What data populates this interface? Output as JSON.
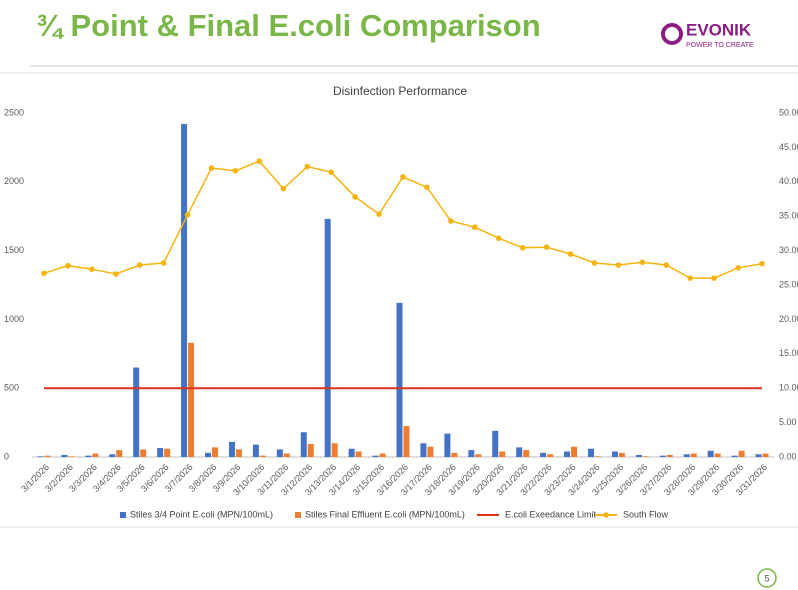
{
  "slide_title": "¾ Point & Final E.coli Comparison",
  "logo": {
    "name": "EVONIK",
    "tagline": "POWER TO CREATE"
  },
  "page_number": "5",
  "chart_data": {
    "type": "bar",
    "title": "Disinfection Performance",
    "categories": [
      "3/1/2026",
      "3/2/2026",
      "3/3/2026",
      "3/4/2026",
      "3/5/2026",
      "3/6/2026",
      "3/7/2026",
      "3/8/2026",
      "3/9/2026",
      "3/10/2026",
      "3/11/2026",
      "3/12/2026",
      "3/13/2026",
      "3/14/2026",
      "3/15/2026",
      "3/16/2026",
      "3/17/2026",
      "3/18/2026",
      "3/19/2026",
      "3/20/2026",
      "3/21/2026",
      "3/22/2026",
      "3/23/2026",
      "3/24/2026",
      "3/25/2026",
      "3/26/2026",
      "3/27/2026",
      "3/28/2026",
      "3/29/2026",
      "3/30/2026",
      "3/31/2026"
    ],
    "series": [
      {
        "name": "Stiles 3/4 Point E.coli (MPN/100mL)",
        "type": "bar",
        "color": "#4472c4",
        "values": [
          5,
          15,
          10,
          20,
          650,
          65,
          2420,
          30,
          110,
          90,
          55,
          180,
          1730,
          60,
          10,
          1120,
          100,
          170,
          50,
          190,
          70,
          30,
          40,
          60,
          40,
          15,
          10,
          20,
          45,
          10,
          20
        ]
      },
      {
        "name": "Stiles Final Effluent E.coli  (MPN/100mL)",
        "type": "bar",
        "color": "#ed7d31",
        "values": [
          10,
          5,
          25,
          50,
          55,
          60,
          830,
          70,
          55,
          10,
          25,
          95,
          100,
          40,
          25,
          225,
          75,
          30,
          20,
          40,
          50,
          20,
          75,
          5,
          30,
          5,
          15,
          25,
          25,
          45,
          25
        ]
      },
      {
        "name": "E.coli Exeedance Limit",
        "type": "line",
        "color": "#e0301e",
        "marker": false,
        "values": [
          500,
          500,
          500,
          500,
          500,
          500,
          500,
          500,
          500,
          500,
          500,
          500,
          500,
          500,
          500,
          500,
          500,
          500,
          500,
          500,
          500,
          500,
          500,
          500,
          500,
          500,
          500,
          500,
          500,
          500,
          500
        ]
      },
      {
        "name": "South Flow",
        "type": "line",
        "axis": "y2",
        "color": "#f5b30f",
        "marker": true,
        "values": [
          26.7,
          27.8,
          27.3,
          26.6,
          27.9,
          28.2,
          35.2,
          42.0,
          41.6,
          43.0,
          39.0,
          42.2,
          41.4,
          37.8,
          35.3,
          40.7,
          39.2,
          34.3,
          33.4,
          31.8,
          30.4,
          30.5,
          29.5,
          28.2,
          27.9,
          28.3,
          27.9,
          26.0,
          26.0,
          27.5,
          28.1
        ]
      }
    ],
    "ylim": [
      0,
      2500
    ],
    "yticks": [
      0,
      500,
      1000,
      1500,
      2000,
      2500
    ],
    "y2lim": [
      0,
      50
    ],
    "y2ticks": [
      {
        "value": 0,
        "label": "0.00"
      },
      {
        "value": 5,
        "label": "5.00"
      },
      {
        "value": 10,
        "label": "10.00"
      },
      {
        "value": 15,
        "label": "15.00"
      },
      {
        "value": 20,
        "label": "20.00"
      },
      {
        "value": 25,
        "label": "25.00"
      },
      {
        "value": 30,
        "label": "30.00"
      },
      {
        "value": 35,
        "label": "35.00"
      },
      {
        "value": 40,
        "label": "40.00"
      },
      {
        "value": 45,
        "label": "45.00"
      },
      {
        "value": 50,
        "label": "50.00"
      }
    ],
    "grid": false,
    "legend": "bottom"
  }
}
